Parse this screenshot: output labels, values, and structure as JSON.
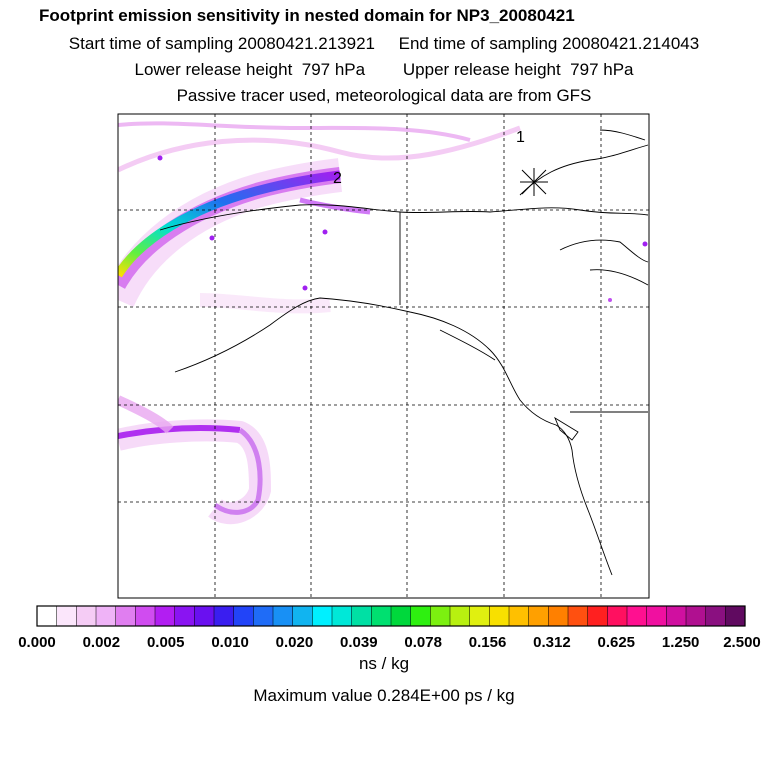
{
  "header": {
    "title": "Footprint emission sensitivity in nested domain for NP3_20080421",
    "start_time": "Start time of sampling 20080421.213921",
    "end_time": "End time of sampling 20080421.214043",
    "lower_height": "Lower release height  797 hPa",
    "upper_height": "Upper release height  797 hPa",
    "note": "Passive tracer used, meteorological data are from GFS"
  },
  "markers": [
    {
      "label": "1"
    },
    {
      "label": "2"
    }
  ],
  "colorbar": {
    "tick_labels": [
      "0.000",
      "0.002",
      "0.005",
      "0.010",
      "0.020",
      "0.039",
      "0.078",
      "0.156",
      "0.312",
      "0.625",
      "1.250",
      "2.500"
    ],
    "colors": [
      "#ffffff",
      "#fbe6fb",
      "#f5ccf5",
      "#efb3f7",
      "#e07ef0",
      "#d04cf0",
      "#b21ef2",
      "#8a14f2",
      "#6a10f0",
      "#3a1ef0",
      "#2244f8",
      "#1f6cf7",
      "#1890f5",
      "#11b4f0",
      "#00f0ff",
      "#00e8d8",
      "#00e0a4",
      "#00e070",
      "#00d83c",
      "#2ef010",
      "#7cf010",
      "#b8f010",
      "#e0f010",
      "#f8e000",
      "#ffc000",
      "#ffa000",
      "#ff8000",
      "#ff5010",
      "#ff2020",
      "#ff1060",
      "#ff1090",
      "#f010a0",
      "#d010a0",
      "#b01090",
      "#8a1080",
      "#600a60"
    ],
    "unit": "ns / kg"
  },
  "max_value": "Maximum value  0.284E+00 ps / kg"
}
